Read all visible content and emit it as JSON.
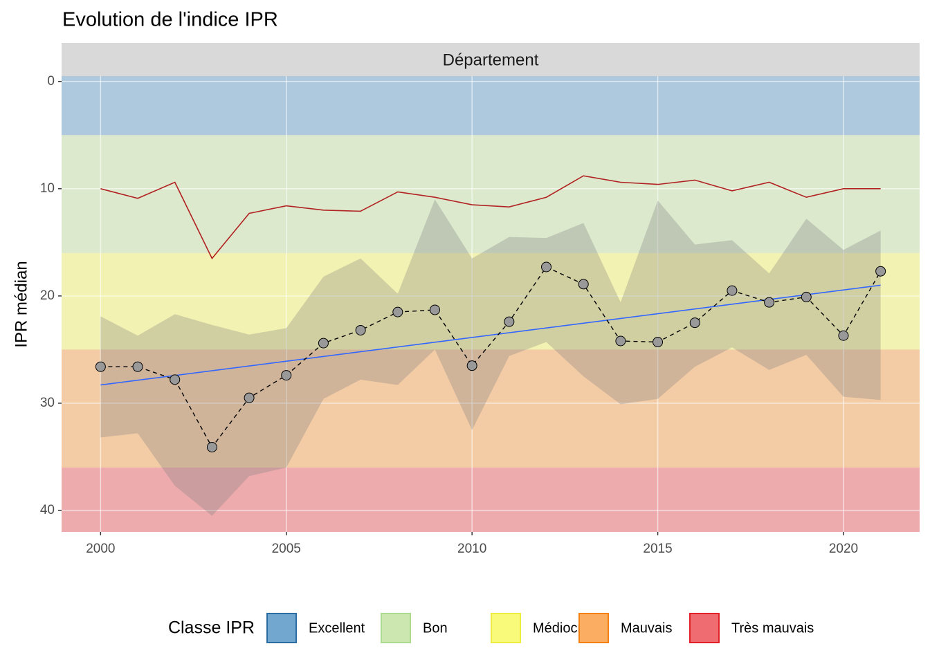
{
  "chart_data": {
    "type": "line",
    "title": "Evolution de l'indice IPR",
    "facet": "Département",
    "y_label": "IPR médian",
    "y_reversed": true,
    "grid": true,
    "xlim": [
      1998.95,
      2022.05
    ],
    "ylim": [
      -0.5,
      42
    ],
    "xticks": [
      2000,
      2005,
      2010,
      2015,
      2020
    ],
    "yticks": [
      0,
      10,
      20,
      30,
      40
    ],
    "legend_title": "Classe IPR",
    "legend_position": "bottom",
    "classes": [
      {
        "name": "Excellent",
        "color": "#72a8cf",
        "border": "#2b6ca3"
      },
      {
        "name": "Bon",
        "color": "#cde7b0",
        "border": "#a9dc8c"
      },
      {
        "name": "Médiocre",
        "color": "#f9f97a",
        "border": "#eded40"
      },
      {
        "name": "Mauvais",
        "color": "#fbad61",
        "border": "#f47f12"
      },
      {
        "name": "Très mauvais",
        "color": "#ef6c70",
        "border": "#e02127"
      }
    ],
    "class_breaks": [
      5,
      16,
      25,
      36
    ],
    "x": [
      2000,
      2001,
      2002,
      2003,
      2004,
      2005,
      2006,
      2007,
      2008,
      2009,
      2010,
      2011,
      2012,
      2013,
      2014,
      2015,
      2016,
      2017,
      2018,
      2019,
      2020,
      2021
    ],
    "median": [
      26.6,
      26.6,
      27.8,
      34.1,
      29.5,
      27.4,
      24.4,
      23.2,
      21.5,
      21.3,
      26.5,
      22.4,
      17.3,
      18.9,
      24.2,
      24.3,
      22.5,
      19.5,
      20.6,
      20.1,
      23.7,
      17.7
    ],
    "red_line": [
      10.0,
      10.9,
      9.4,
      16.5,
      12.3,
      11.6,
      12.0,
      12.1,
      10.3,
      10.8,
      11.5,
      11.7,
      10.8,
      8.8,
      9.4,
      9.6,
      9.2,
      10.2,
      9.4,
      10.8,
      10.0,
      10.0
    ],
    "ribbon_low": [
      21.9,
      23.7,
      21.7,
      22.7,
      23.6,
      23.0,
      18.2,
      16.5,
      19.8,
      11.0,
      16.5,
      14.5,
      14.6,
      13.2,
      20.6,
      11.1,
      15.2,
      14.8,
      17.9,
      12.8,
      15.7,
      13.9
    ],
    "ribbon_high": [
      33.2,
      32.8,
      37.7,
      40.5,
      36.8,
      36.0,
      29.6,
      27.8,
      28.3,
      25.0,
      32.5,
      25.6,
      24.3,
      27.5,
      30.1,
      29.6,
      26.6,
      24.8,
      26.9,
      25.5,
      29.4,
      29.7
    ],
    "trend_x": [
      2000,
      2021
    ],
    "trend": [
      28.3,
      19.0
    ],
    "colors": {
      "median": "#999999",
      "red_line": "#b22222",
      "trend": "#3366ff",
      "ribbon": "#7f7f7f"
    }
  }
}
